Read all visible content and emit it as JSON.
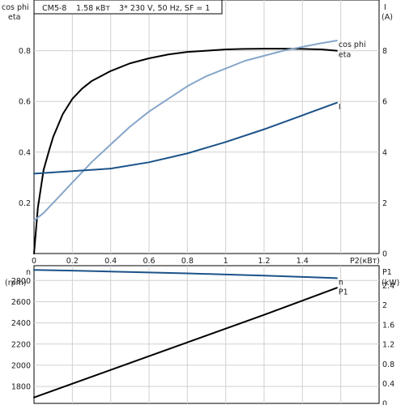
{
  "header": {
    "model": "CM5-8",
    "power": "1.58 кВт",
    "supply": "3* 230 V, 50 Hz, SF = 1"
  },
  "chart_data": [
    {
      "type": "line",
      "xlabel": "P2(кВт)",
      "xlim": [
        0,
        1.8
      ],
      "x_ticks": [
        "0",
        "0.2",
        "0.4",
        "0.6",
        "0.8",
        "1",
        "1.2",
        "1.4"
      ],
      "left_axis": {
        "labels": [
          "cos phi",
          "eta"
        ],
        "ylim": [
          0,
          1
        ],
        "ticks": [
          "0.2",
          "0.4",
          "0.6",
          "0.8"
        ]
      },
      "right_axis": {
        "labels": [
          "I",
          "(A)"
        ],
        "ylim": [
          0,
          10
        ],
        "ticks": [
          "0",
          "2",
          "4",
          "6",
          "8"
        ]
      },
      "grid": true,
      "series": [
        {
          "name": "eta",
          "axis": "left",
          "color": "#000000",
          "x": [
            0,
            0.02,
            0.05,
            0.08,
            0.1,
            0.15,
            0.2,
            0.25,
            0.3,
            0.4,
            0.5,
            0.6,
            0.7,
            0.8,
            0.9,
            1.0,
            1.1,
            1.2,
            1.3,
            1.4,
            1.5,
            1.58
          ],
          "y": [
            0,
            0.18,
            0.33,
            0.41,
            0.46,
            0.55,
            0.61,
            0.65,
            0.68,
            0.72,
            0.75,
            0.77,
            0.785,
            0.795,
            0.8,
            0.805,
            0.807,
            0.808,
            0.808,
            0.807,
            0.805,
            0.8
          ]
        },
        {
          "name": "cos phi",
          "axis": "left",
          "color": "#86a6c9",
          "x": [
            0,
            0.05,
            0.1,
            0.2,
            0.3,
            0.4,
            0.5,
            0.6,
            0.7,
            0.8,
            0.9,
            1.0,
            1.1,
            1.2,
            1.3,
            1.4,
            1.5,
            1.58
          ],
          "y": [
            0.13,
            0.16,
            0.2,
            0.28,
            0.36,
            0.43,
            0.5,
            0.56,
            0.61,
            0.66,
            0.7,
            0.73,
            0.76,
            0.78,
            0.8,
            0.815,
            0.83,
            0.84
          ]
        },
        {
          "name": "I",
          "axis": "right",
          "color": "#1b5288",
          "x": [
            0,
            0.2,
            0.4,
            0.6,
            0.8,
            1.0,
            1.2,
            1.4,
            1.58
          ],
          "y": [
            3.15,
            3.25,
            3.35,
            3.6,
            3.95,
            4.4,
            4.9,
            5.45,
            5.95
          ]
        }
      ]
    },
    {
      "type": "line",
      "xlim": [
        0,
        1.8
      ],
      "left_axis": {
        "labels": [
          "n",
          "(rpm)"
        ],
        "ylim": [
          1640,
          2940
        ],
        "ticks": [
          "1800",
          "2000",
          "2200",
          "2400",
          "2600",
          "2800"
        ]
      },
      "right_axis": {
        "labels": [
          "P1",
          "(kW)"
        ],
        "ylim": [
          0,
          2.8
        ],
        "ticks": [
          "0",
          "0.4",
          "0.8",
          "1.2",
          "1.6",
          "2",
          "2.4"
        ]
      },
      "grid": true,
      "series": [
        {
          "name": "n",
          "axis": "left",
          "color": "#1b5288",
          "x": [
            0,
            0.2,
            0.4,
            0.6,
            0.8,
            1.0,
            1.2,
            1.4,
            1.58
          ],
          "y": [
            2900,
            2893,
            2885,
            2876,
            2867,
            2857,
            2846,
            2834,
            2822
          ]
        },
        {
          "name": "P1",
          "axis": "right",
          "color": "#000000",
          "x": [
            0,
            0.4,
            0.8,
            1.2,
            1.58
          ],
          "y": [
            0.12,
            0.68,
            1.24,
            1.8,
            2.35
          ]
        }
      ]
    }
  ]
}
